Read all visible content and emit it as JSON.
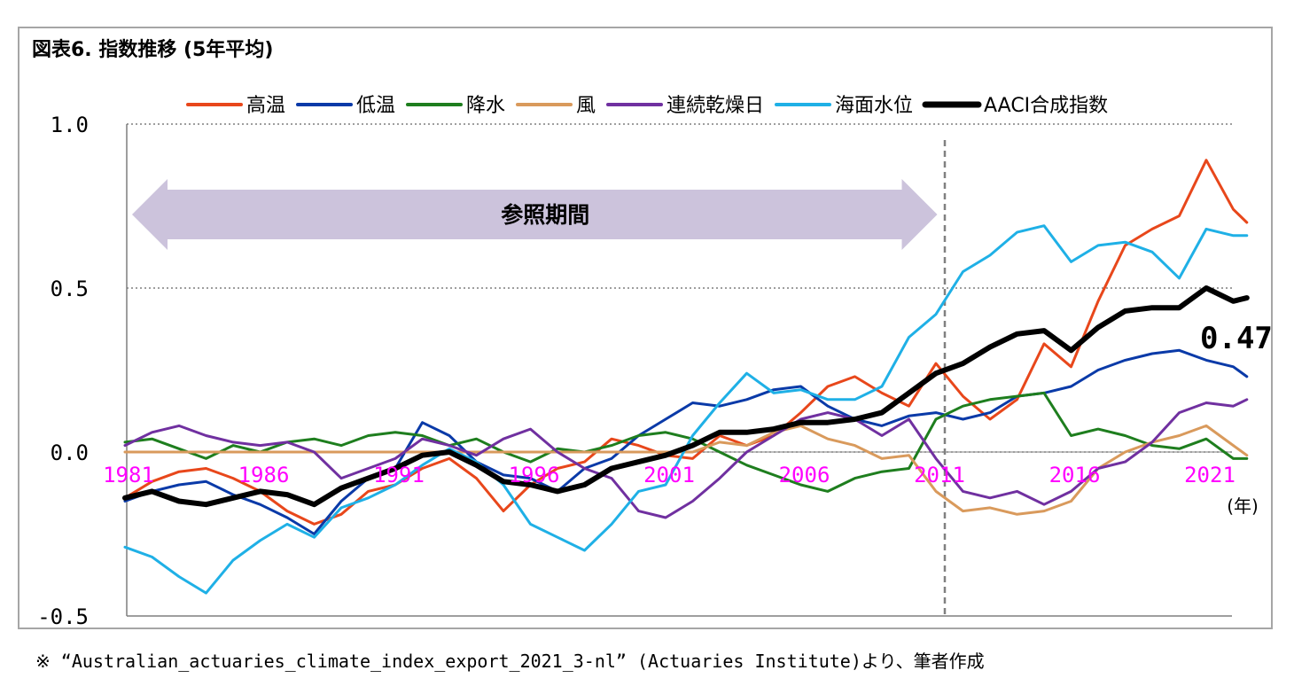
{
  "title": "図表6. 指数推移 (5年平均)",
  "footnote": "※ “Australian_actuaries_climate_index_export_2021_3-nl” (Actuaries Institute)より、筆者作成",
  "chart_data": {
    "type": "line",
    "xunit": "(年)",
    "xticks": [
      "1981",
      "1986",
      "1991",
      "1996",
      "2001",
      "2006",
      "2011",
      "2016",
      "2021"
    ],
    "yticks": [
      "1.0",
      "0.5",
      "0.0",
      "-0.5"
    ],
    "ylim": [
      -0.5,
      1.0
    ],
    "xlim": [
      1981,
      2022.5
    ],
    "legend_position": "top",
    "reference_period_label": "参照期間",
    "reference_period": [
      1981,
      2010
    ],
    "vline_x": 2011,
    "end_label": "0.47",
    "series": [
      {
        "name": "高温",
        "color": "#e8471b",
        "width": 3,
        "points": [
          [
            1981,
            -0.14
          ],
          [
            1982,
            -0.09
          ],
          [
            1983,
            -0.06
          ],
          [
            1984,
            -0.05
          ],
          [
            1985,
            -0.08
          ],
          [
            1986,
            -0.12
          ],
          [
            1987,
            -0.18
          ],
          [
            1988,
            -0.22
          ],
          [
            1989,
            -0.19
          ],
          [
            1990,
            -0.12
          ],
          [
            1991,
            -0.1
          ],
          [
            1992,
            -0.05
          ],
          [
            1993,
            -0.02
          ],
          [
            1994,
            -0.08
          ],
          [
            1995,
            -0.18
          ],
          [
            1996,
            -0.1
          ],
          [
            1997,
            -0.05
          ],
          [
            1998,
            -0.03
          ],
          [
            1999,
            0.04
          ],
          [
            2000,
            0.02
          ],
          [
            2001,
            -0.01
          ],
          [
            2002,
            -0.02
          ],
          [
            2003,
            0.05
          ],
          [
            2004,
            0.02
          ],
          [
            2005,
            0.05
          ],
          [
            2006,
            0.12
          ],
          [
            2007,
            0.2
          ],
          [
            2008,
            0.23
          ],
          [
            2009,
            0.18
          ],
          [
            2010,
            0.14
          ],
          [
            2011,
            0.27
          ],
          [
            2012,
            0.17
          ],
          [
            2013,
            0.1
          ],
          [
            2014,
            0.16
          ],
          [
            2015,
            0.33
          ],
          [
            2016,
            0.26
          ],
          [
            2017,
            0.46
          ],
          [
            2018,
            0.63
          ],
          [
            2019,
            0.68
          ],
          [
            2020,
            0.72
          ],
          [
            2021,
            0.89
          ],
          [
            2022,
            0.74
          ],
          [
            2022.5,
            0.7
          ]
        ]
      },
      {
        "name": "低温",
        "color": "#0a3aa8",
        "width": 3,
        "points": [
          [
            1981,
            -0.15
          ],
          [
            1982,
            -0.12
          ],
          [
            1983,
            -0.1
          ],
          [
            1984,
            -0.09
          ],
          [
            1985,
            -0.13
          ],
          [
            1986,
            -0.16
          ],
          [
            1987,
            -0.2
          ],
          [
            1988,
            -0.25
          ],
          [
            1989,
            -0.15
          ],
          [
            1990,
            -0.08
          ],
          [
            1991,
            -0.05
          ],
          [
            1992,
            0.09
          ],
          [
            1993,
            0.05
          ],
          [
            1994,
            -0.03
          ],
          [
            1995,
            -0.07
          ],
          [
            1996,
            -0.08
          ],
          [
            1997,
            -0.12
          ],
          [
            1998,
            -0.05
          ],
          [
            1999,
            -0.02
          ],
          [
            2000,
            0.05
          ],
          [
            2001,
            0.1
          ],
          [
            2002,
            0.15
          ],
          [
            2003,
            0.14
          ],
          [
            2004,
            0.16
          ],
          [
            2005,
            0.19
          ],
          [
            2006,
            0.2
          ],
          [
            2007,
            0.14
          ],
          [
            2008,
            0.1
          ],
          [
            2009,
            0.08
          ],
          [
            2010,
            0.11
          ],
          [
            2011,
            0.12
          ],
          [
            2012,
            0.1
          ],
          [
            2013,
            0.12
          ],
          [
            2014,
            0.17
          ],
          [
            2015,
            0.18
          ],
          [
            2016,
            0.2
          ],
          [
            2017,
            0.25
          ],
          [
            2018,
            0.28
          ],
          [
            2019,
            0.3
          ],
          [
            2020,
            0.31
          ],
          [
            2021,
            0.28
          ],
          [
            2022,
            0.26
          ],
          [
            2022.5,
            0.23
          ]
        ]
      },
      {
        "name": "降水",
        "color": "#1e7e1e",
        "width": 3,
        "points": [
          [
            1981,
            0.03
          ],
          [
            1982,
            0.04
          ],
          [
            1983,
            0.01
          ],
          [
            1984,
            -0.02
          ],
          [
            1985,
            0.02
          ],
          [
            1986,
            0.0
          ],
          [
            1987,
            0.03
          ],
          [
            1988,
            0.04
          ],
          [
            1989,
            0.02
          ],
          [
            1990,
            0.05
          ],
          [
            1991,
            0.06
          ],
          [
            1992,
            0.05
          ],
          [
            1993,
            0.02
          ],
          [
            1994,
            0.04
          ],
          [
            1995,
            0.0
          ],
          [
            1996,
            -0.03
          ],
          [
            1997,
            0.01
          ],
          [
            1998,
            0.0
          ],
          [
            1999,
            0.02
          ],
          [
            2000,
            0.05
          ],
          [
            2001,
            0.06
          ],
          [
            2002,
            0.04
          ],
          [
            2003,
            0.0
          ],
          [
            2004,
            -0.04
          ],
          [
            2005,
            -0.07
          ],
          [
            2006,
            -0.1
          ],
          [
            2007,
            -0.12
          ],
          [
            2008,
            -0.08
          ],
          [
            2009,
            -0.06
          ],
          [
            2010,
            -0.05
          ],
          [
            2011,
            0.1
          ],
          [
            2012,
            0.14
          ],
          [
            2013,
            0.16
          ],
          [
            2014,
            0.17
          ],
          [
            2015,
            0.18
          ],
          [
            2016,
            0.05
          ],
          [
            2017,
            0.07
          ],
          [
            2018,
            0.05
          ],
          [
            2019,
            0.02
          ],
          [
            2020,
            0.01
          ],
          [
            2021,
            0.04
          ],
          [
            2022,
            -0.02
          ],
          [
            2022.5,
            -0.02
          ]
        ]
      },
      {
        "name": "風",
        "color": "#d99a5c",
        "width": 3,
        "points": [
          [
            1981,
            0.0
          ],
          [
            1990,
            0.0
          ],
          [
            2000,
            0.0
          ],
          [
            2002,
            0.0
          ],
          [
            2003,
            0.03
          ],
          [
            2004,
            0.02
          ],
          [
            2005,
            0.06
          ],
          [
            2006,
            0.08
          ],
          [
            2007,
            0.04
          ],
          [
            2008,
            0.02
          ],
          [
            2009,
            -0.02
          ],
          [
            2010,
            -0.01
          ],
          [
            2011,
            -0.12
          ],
          [
            2012,
            -0.18
          ],
          [
            2013,
            -0.17
          ],
          [
            2014,
            -0.19
          ],
          [
            2015,
            -0.18
          ],
          [
            2016,
            -0.15
          ],
          [
            2017,
            -0.05
          ],
          [
            2018,
            0.0
          ],
          [
            2019,
            0.03
          ],
          [
            2020,
            0.05
          ],
          [
            2021,
            0.08
          ],
          [
            2022,
            0.02
          ],
          [
            2022.5,
            -0.01
          ]
        ]
      },
      {
        "name": "連続乾燥日",
        "color": "#7030a0",
        "width": 3,
        "points": [
          [
            1981,
            0.02
          ],
          [
            1982,
            0.06
          ],
          [
            1983,
            0.08
          ],
          [
            1984,
            0.05
          ],
          [
            1985,
            0.03
          ],
          [
            1986,
            0.02
          ],
          [
            1987,
            0.03
          ],
          [
            1988,
            0.0
          ],
          [
            1989,
            -0.08
          ],
          [
            1990,
            -0.05
          ],
          [
            1991,
            -0.02
          ],
          [
            1992,
            0.04
          ],
          [
            1993,
            0.02
          ],
          [
            1994,
            -0.01
          ],
          [
            1995,
            0.04
          ],
          [
            1996,
            0.07
          ],
          [
            1997,
            0.0
          ],
          [
            1998,
            -0.05
          ],
          [
            1999,
            -0.08
          ],
          [
            2000,
            -0.18
          ],
          [
            2001,
            -0.2
          ],
          [
            2002,
            -0.15
          ],
          [
            2003,
            -0.08
          ],
          [
            2004,
            0.0
          ],
          [
            2005,
            0.05
          ],
          [
            2006,
            0.1
          ],
          [
            2007,
            0.12
          ],
          [
            2008,
            0.1
          ],
          [
            2009,
            0.05
          ],
          [
            2010,
            0.1
          ],
          [
            2011,
            -0.02
          ],
          [
            2012,
            -0.12
          ],
          [
            2013,
            -0.14
          ],
          [
            2014,
            -0.12
          ],
          [
            2015,
            -0.16
          ],
          [
            2016,
            -0.12
          ],
          [
            2017,
            -0.05
          ],
          [
            2018,
            -0.03
          ],
          [
            2019,
            0.03
          ],
          [
            2020,
            0.12
          ],
          [
            2021,
            0.15
          ],
          [
            2022,
            0.14
          ],
          [
            2022.5,
            0.16
          ]
        ]
      },
      {
        "name": "海面水位",
        "color": "#1fb0e6",
        "width": 3,
        "points": [
          [
            1981,
            -0.29
          ],
          [
            1982,
            -0.32
          ],
          [
            1983,
            -0.38
          ],
          [
            1984,
            -0.43
          ],
          [
            1985,
            -0.33
          ],
          [
            1986,
            -0.27
          ],
          [
            1987,
            -0.22
          ],
          [
            1988,
            -0.26
          ],
          [
            1989,
            -0.17
          ],
          [
            1990,
            -0.14
          ],
          [
            1991,
            -0.1
          ],
          [
            1992,
            -0.04
          ],
          [
            1993,
            0.01
          ],
          [
            1994,
            -0.03
          ],
          [
            1995,
            -0.1
          ],
          [
            1996,
            -0.22
          ],
          [
            1997,
            -0.26
          ],
          [
            1998,
            -0.3
          ],
          [
            1999,
            -0.22
          ],
          [
            2000,
            -0.12
          ],
          [
            2001,
            -0.1
          ],
          [
            2002,
            0.05
          ],
          [
            2003,
            0.15
          ],
          [
            2004,
            0.24
          ],
          [
            2005,
            0.18
          ],
          [
            2006,
            0.19
          ],
          [
            2007,
            0.16
          ],
          [
            2008,
            0.16
          ],
          [
            2009,
            0.2
          ],
          [
            2010,
            0.35
          ],
          [
            2011,
            0.42
          ],
          [
            2012,
            0.55
          ],
          [
            2013,
            0.6
          ],
          [
            2014,
            0.67
          ],
          [
            2015,
            0.69
          ],
          [
            2016,
            0.58
          ],
          [
            2017,
            0.63
          ],
          [
            2018,
            0.64
          ],
          [
            2019,
            0.61
          ],
          [
            2020,
            0.53
          ],
          [
            2021,
            0.68
          ],
          [
            2022,
            0.66
          ],
          [
            2022.5,
            0.66
          ]
        ]
      },
      {
        "name": "AACI合成指数",
        "color": "#000000",
        "width": 6,
        "points": [
          [
            1981,
            -0.14
          ],
          [
            1982,
            -0.12
          ],
          [
            1983,
            -0.15
          ],
          [
            1984,
            -0.16
          ],
          [
            1985,
            -0.14
          ],
          [
            1986,
            -0.12
          ],
          [
            1987,
            -0.13
          ],
          [
            1988,
            -0.16
          ],
          [
            1989,
            -0.11
          ],
          [
            1990,
            -0.08
          ],
          [
            1991,
            -0.05
          ],
          [
            1992,
            -0.01
          ],
          [
            1993,
            0.0
          ],
          [
            1994,
            -0.04
          ],
          [
            1995,
            -0.09
          ],
          [
            1996,
            -0.1
          ],
          [
            1997,
            -0.12
          ],
          [
            1998,
            -0.1
          ],
          [
            1999,
            -0.05
          ],
          [
            2000,
            -0.03
          ],
          [
            2001,
            -0.01
          ],
          [
            2002,
            0.02
          ],
          [
            2003,
            0.06
          ],
          [
            2004,
            0.06
          ],
          [
            2005,
            0.07
          ],
          [
            2006,
            0.09
          ],
          [
            2007,
            0.09
          ],
          [
            2008,
            0.1
          ],
          [
            2009,
            0.12
          ],
          [
            2010,
            0.18
          ],
          [
            2011,
            0.24
          ],
          [
            2012,
            0.27
          ],
          [
            2013,
            0.32
          ],
          [
            2014,
            0.36
          ],
          [
            2015,
            0.37
          ],
          [
            2016,
            0.31
          ],
          [
            2017,
            0.38
          ],
          [
            2018,
            0.43
          ],
          [
            2019,
            0.44
          ],
          [
            2020,
            0.44
          ],
          [
            2021,
            0.5
          ],
          [
            2022,
            0.46
          ],
          [
            2022.5,
            0.47
          ]
        ]
      }
    ]
  }
}
